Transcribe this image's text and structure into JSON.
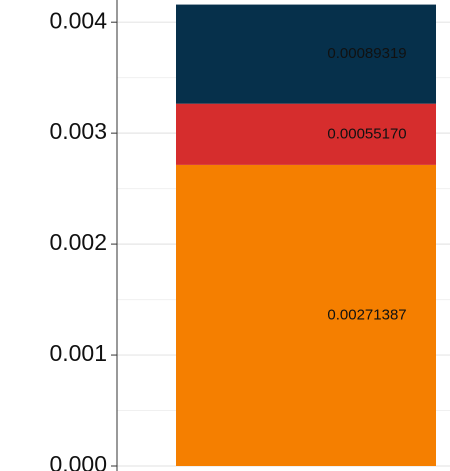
{
  "chart_data": {
    "type": "stacked_bar",
    "series": [
      {
        "color": "#f57f00",
        "values": [
          0.00271387
        ],
        "value_labels": [
          "0.00271387"
        ]
      },
      {
        "color": "#d62d2d",
        "values": [
          0.0005517
        ],
        "value_labels": [
          "0.00055170"
        ]
      },
      {
        "color": "#06304b",
        "values": [
          0.00089319
        ],
        "value_labels": [
          "0.00089319"
        ]
      }
    ],
    "ylim": [
      0,
      0.0042
    ],
    "yticks": [
      {
        "value": 0,
        "label": "0.000"
      },
      {
        "value": 0.001,
        "label": "0.001"
      },
      {
        "value": 0.002,
        "label": "0.002"
      },
      {
        "value": 0.003,
        "label": "0.003"
      },
      {
        "value": 0.004,
        "label": "0.004"
      }
    ],
    "grid": true
  }
}
